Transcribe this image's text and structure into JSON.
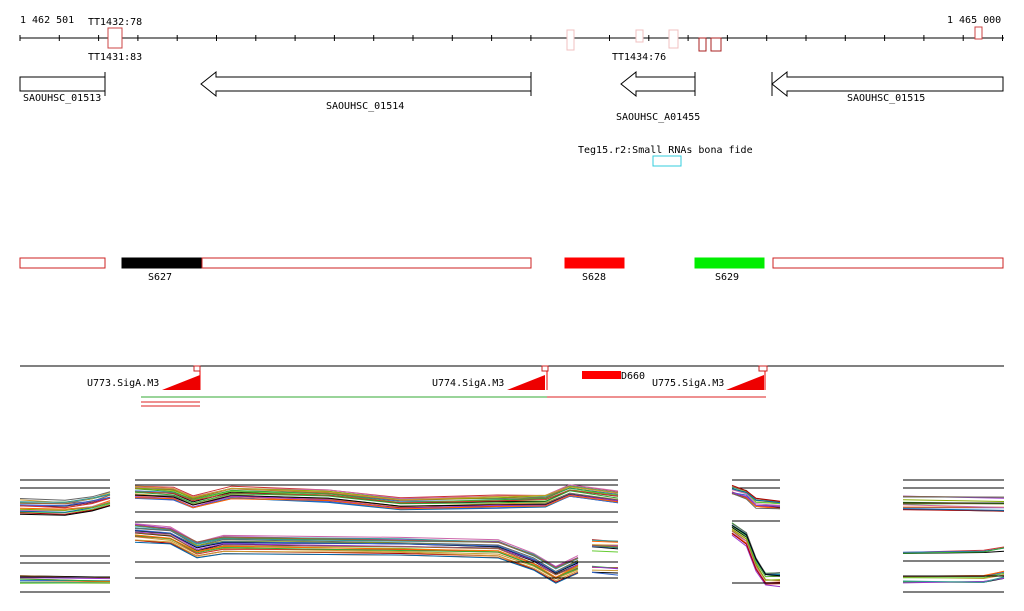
{
  "ruler": {
    "start_label": "1 462 501",
    "end_label": "1 465 000"
  },
  "terminators": [
    {
      "label": "TT1432:78"
    },
    {
      "label": "TT1431:83"
    },
    {
      "label": "TT1434:76"
    }
  ],
  "genes": [
    {
      "label": "SAOUHSC_01513"
    },
    {
      "label": "SAOUHSC_01514"
    },
    {
      "label": "SAOUHSC_A01455"
    },
    {
      "label": "SAOUHSC_01515"
    }
  ],
  "small_rna": {
    "label": "Teg15.r2:Small RNAs bona fide",
    "color": "#33ccdd"
  },
  "segments": [
    {
      "label": "S627",
      "color": "#000000"
    },
    {
      "label": "S628",
      "color": "#ff0000"
    },
    {
      "label": "S629",
      "color": "#00ee00"
    }
  ],
  "promoters": [
    {
      "label": "U773.SigA.M3"
    },
    {
      "label": "U774.SigA.M3"
    },
    {
      "label": "U775.SigA.M3"
    }
  ],
  "downshift": {
    "label": "D660",
    "color": "#ff0000"
  },
  "colors": {
    "outline_red": "#cc2222",
    "promoter_red": "#ee0000",
    "track_green": "#33aa33",
    "track_red": "#dd2222"
  }
}
